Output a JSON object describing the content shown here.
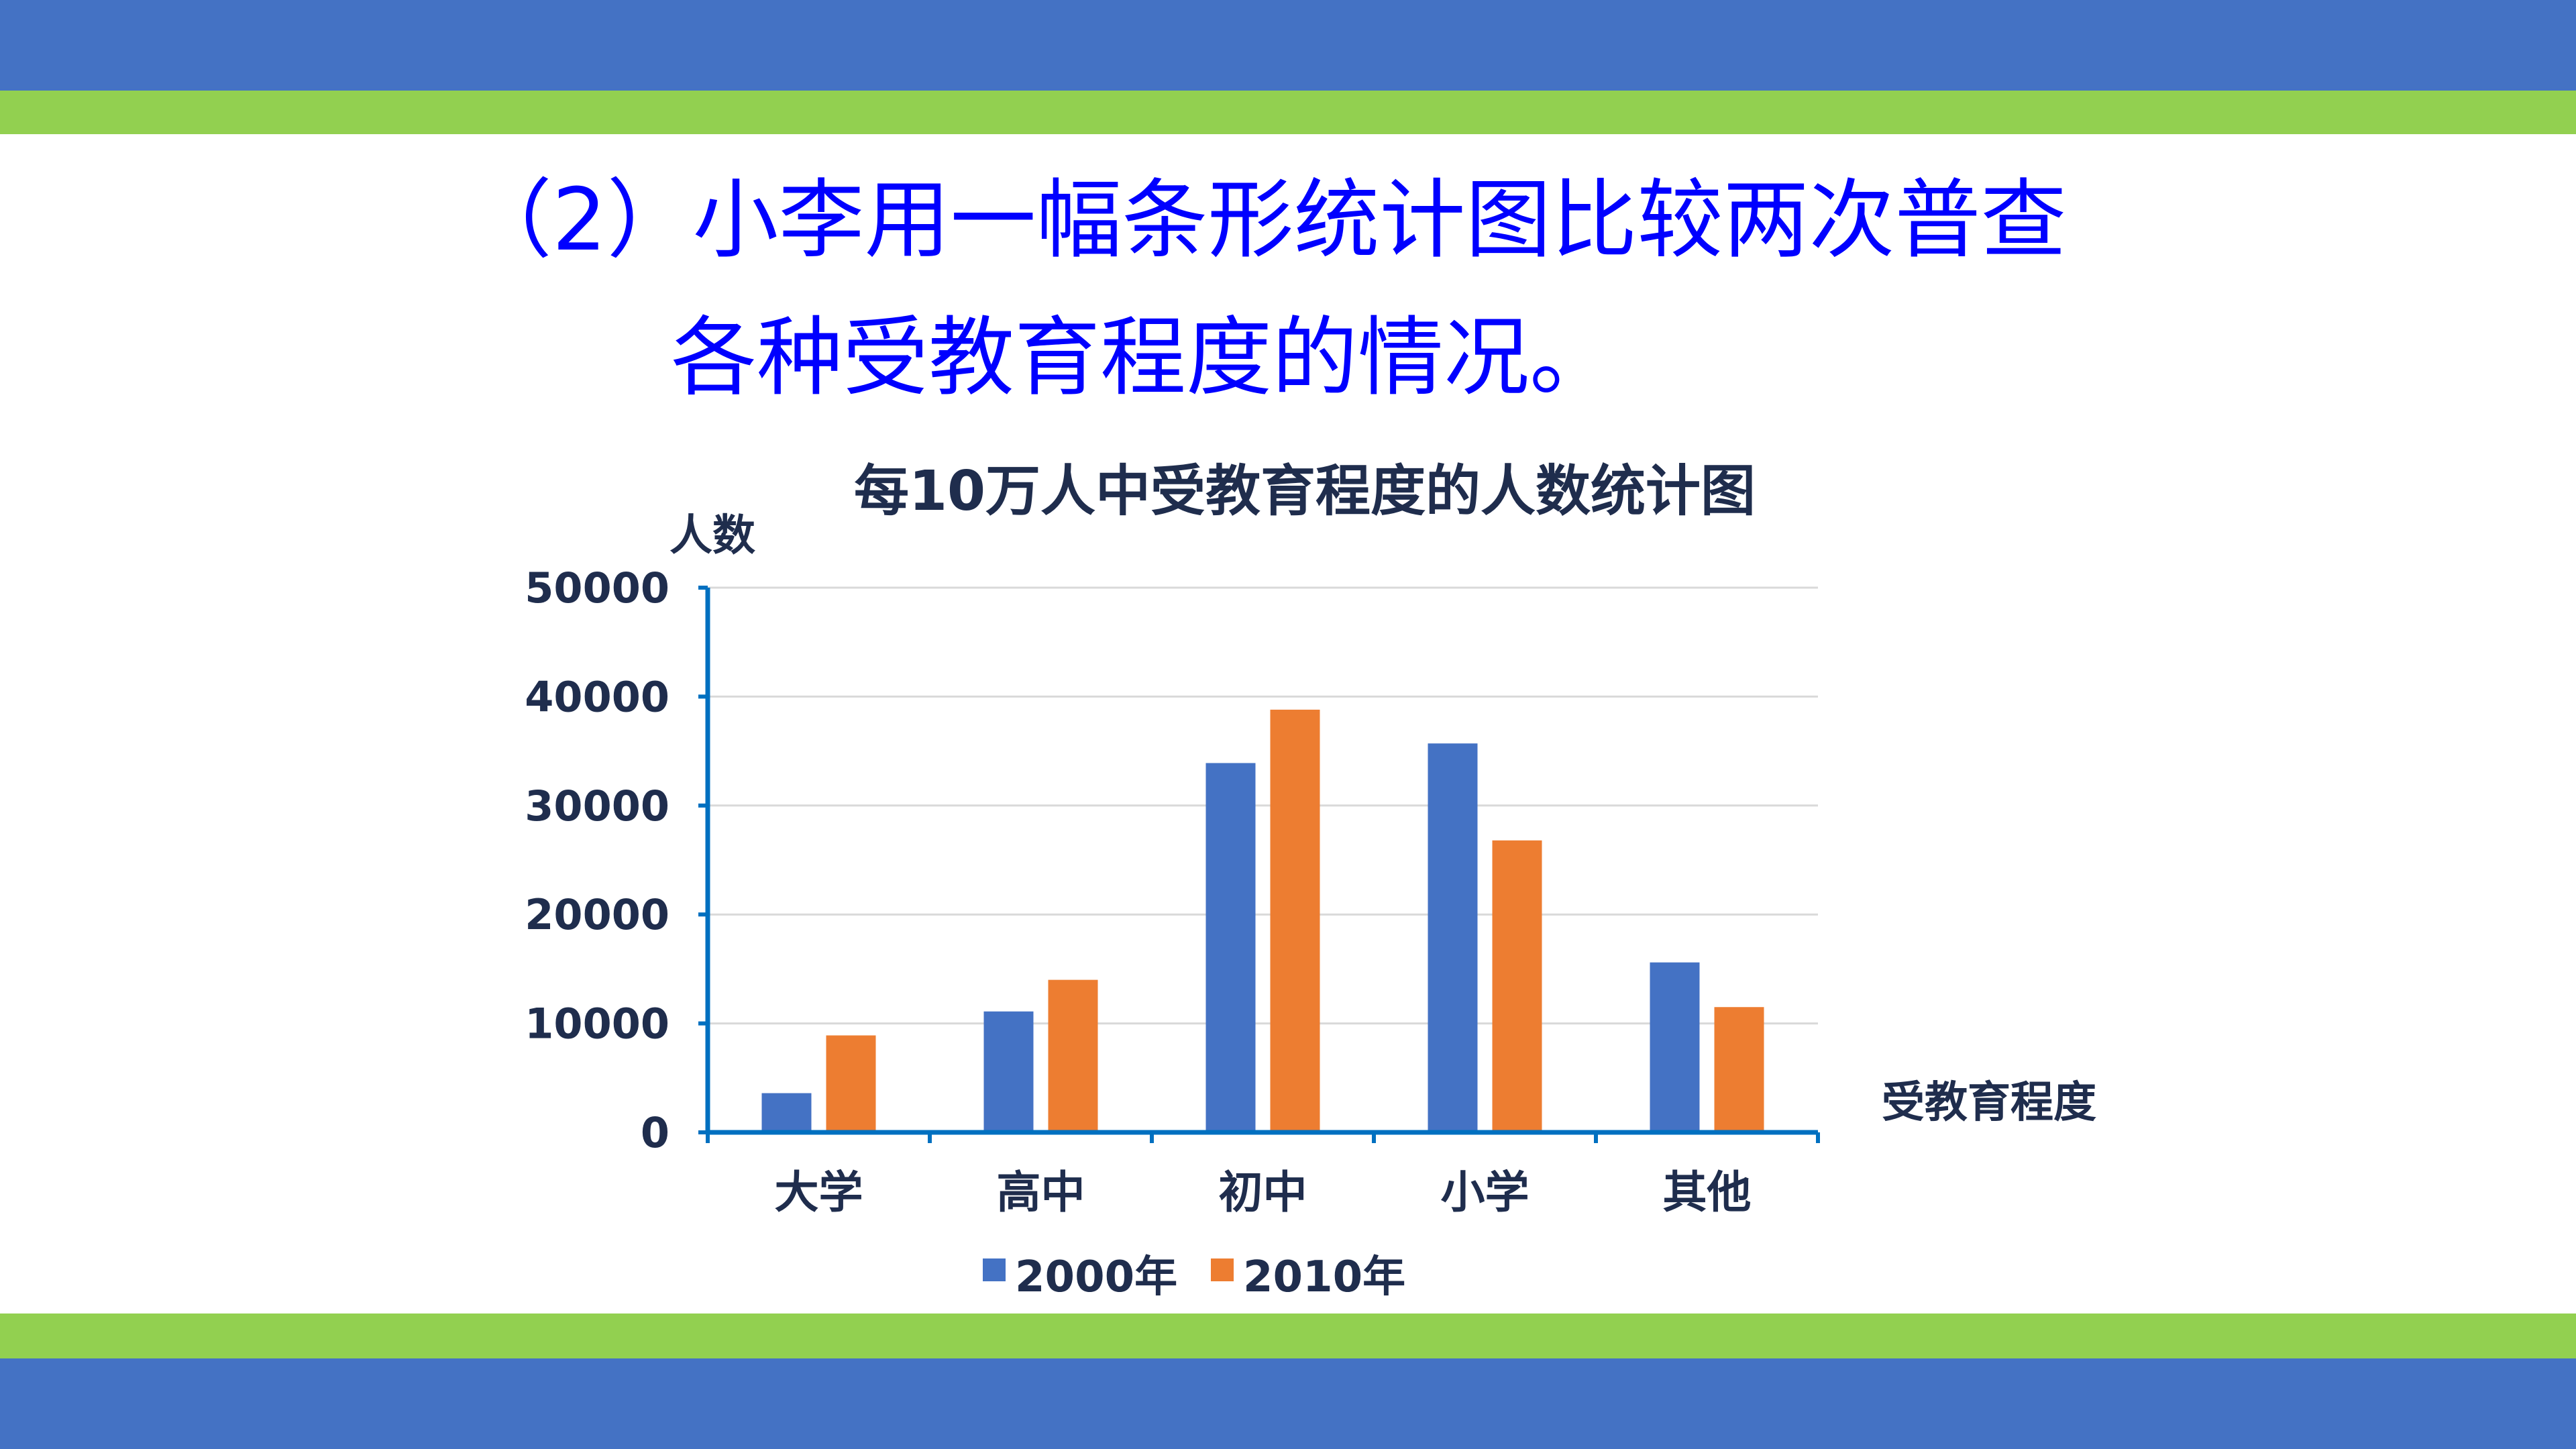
{
  "slide": {
    "line1": "（2）小李用一幅条形统计图比较两次普查",
    "line2": "各种受教育程度的情况。"
  },
  "colors": {
    "band_blue": "#4472c4",
    "band_green": "#92d050",
    "heading": "#0000ff",
    "series_2000": "#4472c4",
    "series_2010": "#ed7d31",
    "axis": "#0070c0",
    "text_dark": "#1f2d4d"
  },
  "chart_data": {
    "type": "bar",
    "title": "每10万人中受教育程度的人数统计图",
    "ylabel": "人数",
    "xlabel": "受教育程度",
    "categories": [
      "大学",
      "高中",
      "初中",
      "小学",
      "其他"
    ],
    "series": [
      {
        "name": "2000年",
        "color": "#4472c4",
        "values": [
          3600,
          11100,
          33900,
          35700,
          15600
        ]
      },
      {
        "name": "2010年",
        "color": "#ed7d31",
        "values": [
          8900,
          14000,
          38800,
          26800,
          11500
        ]
      }
    ],
    "ylim": [
      0,
      50000
    ],
    "yticks": [
      0,
      10000,
      20000,
      30000,
      40000,
      50000
    ],
    "grid": true,
    "legend": "bottom"
  }
}
